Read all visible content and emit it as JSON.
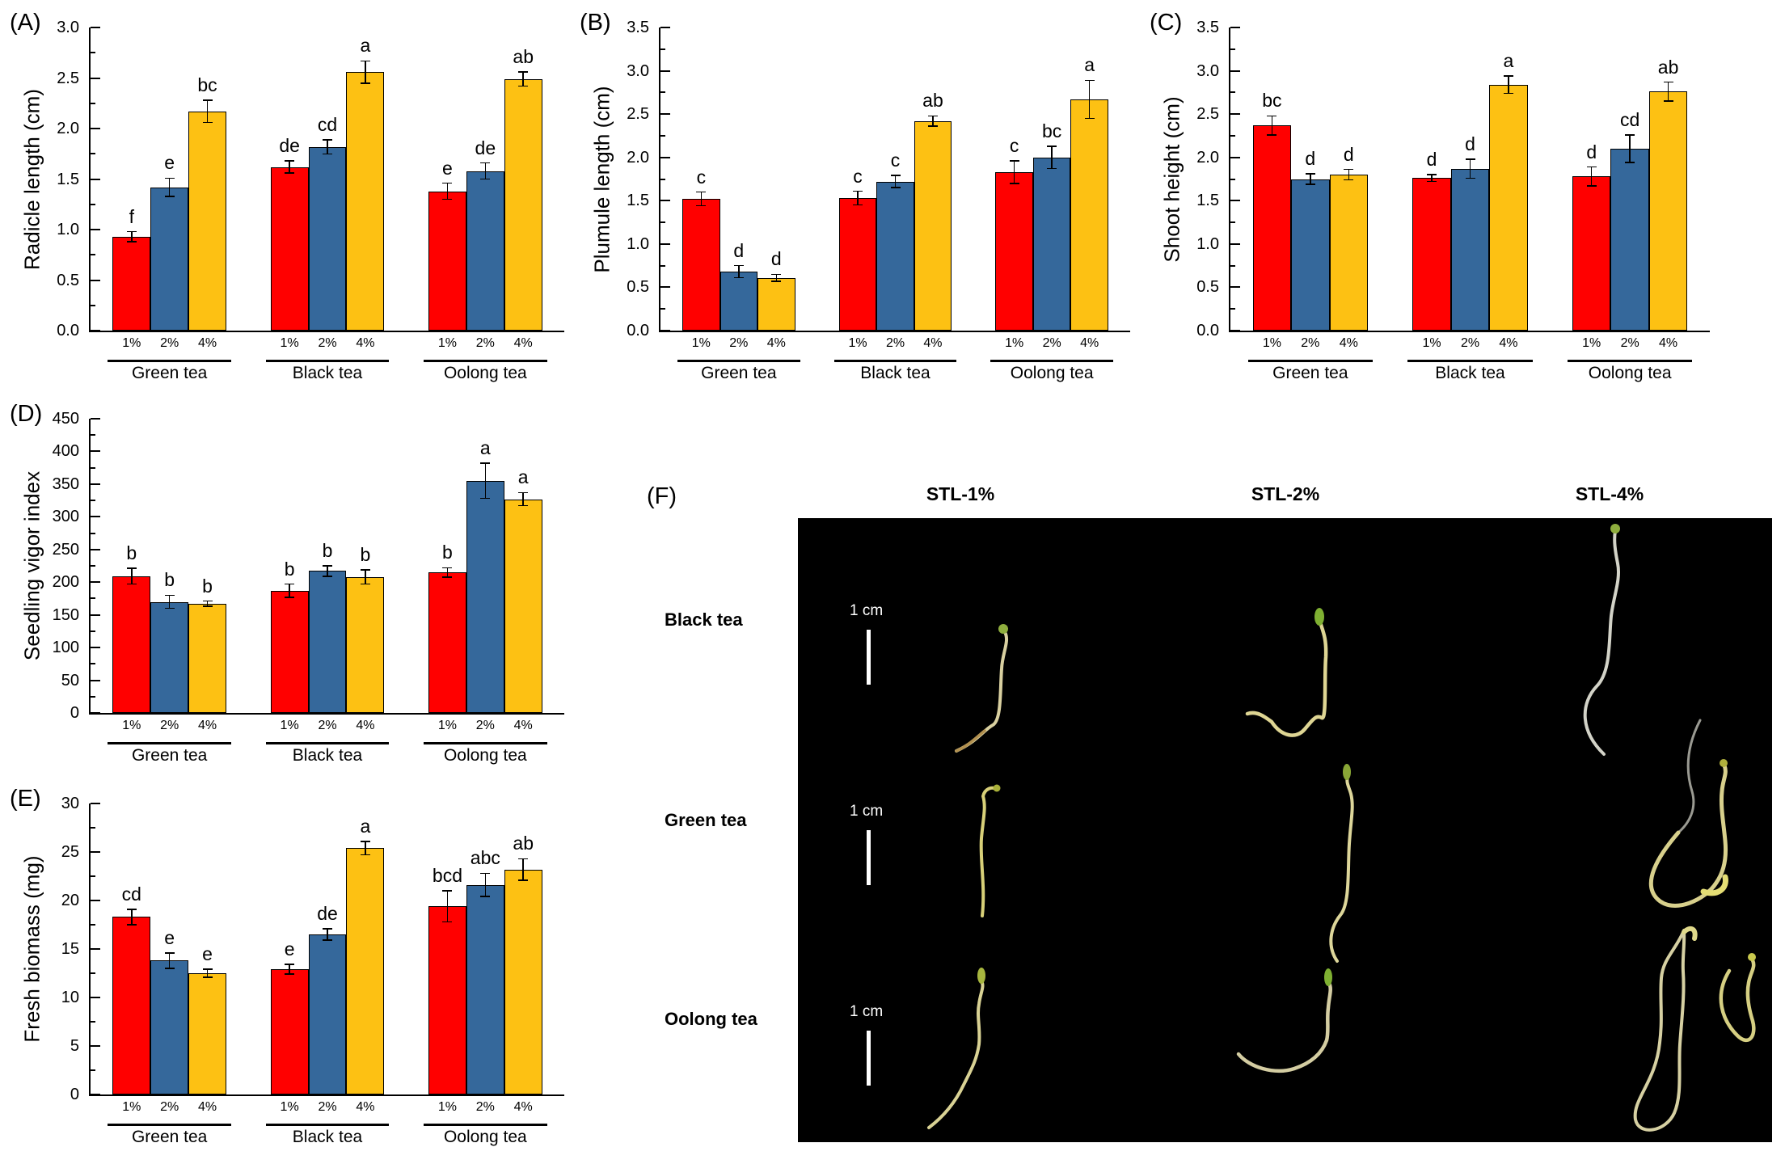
{
  "series": [
    {
      "label": "1%",
      "color": "#FF0000"
    },
    {
      "label": "2%",
      "color": "#35689B"
    },
    {
      "label": "4%",
      "color": "#FDC113"
    }
  ],
  "chart_data": [
    {
      "id": "A",
      "type": "bar",
      "panel_label": "(A)",
      "ylabel": "Radicle length (cm)",
      "ylim": [
        0,
        3.0
      ],
      "ytick_step": 0.5,
      "ydecimals": 1,
      "grid": false,
      "categories": [
        "Green tea",
        "Black tea",
        "Oolong tea"
      ],
      "groups": [
        {
          "name": "Green tea",
          "values": [
            0.93,
            1.42,
            2.17
          ],
          "errors": [
            0.05,
            0.09,
            0.11
          ],
          "letters": [
            "f",
            "e",
            "bc"
          ]
        },
        {
          "name": "Black tea",
          "values": [
            1.62,
            1.82,
            2.56
          ],
          "errors": [
            0.06,
            0.07,
            0.11
          ],
          "letters": [
            "de",
            "cd",
            "a"
          ]
        },
        {
          "name": "Oolong tea",
          "values": [
            1.38,
            1.58,
            2.49
          ],
          "errors": [
            0.08,
            0.08,
            0.07
          ],
          "letters": [
            "e",
            "de",
            "ab"
          ]
        }
      ]
    },
    {
      "id": "B",
      "type": "bar",
      "panel_label": "(B)",
      "ylabel": "Plumule length (cm)",
      "ylim": [
        0,
        3.5
      ],
      "ytick_step": 0.5,
      "ydecimals": 1,
      "grid": false,
      "categories": [
        "Green tea",
        "Black tea",
        "Oolong tea"
      ],
      "groups": [
        {
          "name": "Green tea",
          "values": [
            1.52,
            0.68,
            0.61
          ],
          "errors": [
            0.08,
            0.07,
            0.04
          ],
          "letters": [
            "c",
            "d",
            "d"
          ]
        },
        {
          "name": "Black tea",
          "values": [
            1.53,
            1.72,
            2.42
          ],
          "errors": [
            0.08,
            0.07,
            0.06
          ],
          "letters": [
            "c",
            "c",
            "ab"
          ]
        },
        {
          "name": "Oolong tea",
          "values": [
            1.83,
            2.0,
            2.67
          ],
          "errors": [
            0.13,
            0.13,
            0.22
          ],
          "letters": [
            "c",
            "bc",
            "a"
          ]
        }
      ]
    },
    {
      "id": "C",
      "type": "bar",
      "panel_label": "(C)",
      "ylabel": "Shoot height (cm)",
      "ylim": [
        0,
        3.5
      ],
      "ytick_step": 0.5,
      "ydecimals": 1,
      "grid": false,
      "categories": [
        "Green tea",
        "Black tea",
        "Oolong tea"
      ],
      "groups": [
        {
          "name": "Green tea",
          "values": [
            2.37,
            1.75,
            1.8
          ],
          "errors": [
            0.11,
            0.06,
            0.06
          ],
          "letters": [
            "bc",
            "d",
            "d"
          ]
        },
        {
          "name": "Black tea",
          "values": [
            1.76,
            1.87,
            2.84
          ],
          "errors": [
            0.04,
            0.11,
            0.1
          ],
          "letters": [
            "d",
            "d",
            "a"
          ]
        },
        {
          "name": "Oolong tea",
          "values": [
            1.78,
            2.1,
            2.76
          ],
          "errors": [
            0.11,
            0.16,
            0.11
          ],
          "letters": [
            "d",
            "cd",
            "ab"
          ]
        }
      ]
    },
    {
      "id": "D",
      "type": "bar",
      "panel_label": "(D)",
      "ylabel": "Seedling vigor index",
      "ylim": [
        0,
        450
      ],
      "ytick_step": 50,
      "ydecimals": 0,
      "grid": false,
      "categories": [
        "Green tea",
        "Black tea",
        "Oolong tea"
      ],
      "groups": [
        {
          "name": "Green tea",
          "values": [
            209,
            170,
            167
          ],
          "errors": [
            12,
            10,
            4
          ],
          "letters": [
            "b",
            "b",
            "b"
          ]
        },
        {
          "name": "Black tea",
          "values": [
            187,
            217,
            208
          ],
          "errors": [
            10,
            8,
            11
          ],
          "letters": [
            "b",
            "b",
            "b"
          ]
        },
        {
          "name": "Oolong tea",
          "values": [
            215,
            355,
            327
          ],
          "errors": [
            7,
            27,
            10
          ],
          "letters": [
            "b",
            "a",
            "a"
          ]
        }
      ]
    },
    {
      "id": "E",
      "type": "bar",
      "panel_label": "(E)",
      "ylabel": "Fresh biomass (mg)",
      "ylim": [
        0,
        30
      ],
      "ytick_step": 5,
      "ydecimals": 0,
      "grid": false,
      "categories": [
        "Green tea",
        "Black tea",
        "Oolong tea"
      ],
      "groups": [
        {
          "name": "Green tea",
          "values": [
            18.3,
            13.8,
            12.5
          ],
          "errors": [
            0.8,
            0.8,
            0.4
          ],
          "letters": [
            "cd",
            "e",
            "e"
          ]
        },
        {
          "name": "Black tea",
          "values": [
            12.9,
            16.5,
            25.4
          ],
          "errors": [
            0.5,
            0.6,
            0.7
          ],
          "letters": [
            "e",
            "de",
            "a"
          ]
        },
        {
          "name": "Oolong tea",
          "values": [
            19.4,
            21.6,
            23.2
          ],
          "errors": [
            1.6,
            1.2,
            1.1
          ],
          "letters": [
            "bcd",
            "abc",
            "ab"
          ]
        }
      ]
    }
  ],
  "photo_panel": {
    "label": "(F)",
    "columns": [
      "STL-1%",
      "STL-2%",
      "STL-4%"
    ],
    "rows": [
      "Black tea",
      "Green tea",
      "Oolong tea"
    ],
    "scale_bar_label": "1 cm",
    "background_color": "#000000"
  }
}
